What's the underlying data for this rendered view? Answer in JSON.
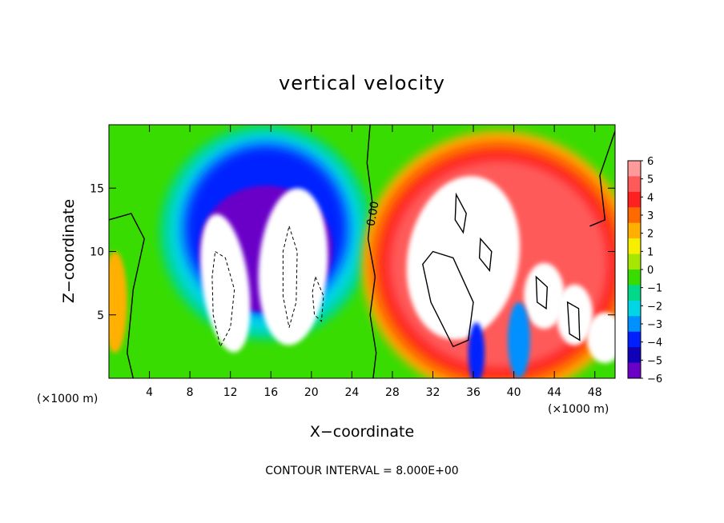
{
  "chart_data": {
    "type": "heatmap",
    "title": "vertical velocity",
    "xlabel": "X−coordinate",
    "ylabel": "Z−coordinate",
    "x_unit_left": "(×1000 m)",
    "x_unit_right": "(×1000 m)",
    "xlim": [
      0,
      50
    ],
    "ylim": [
      0,
      20
    ],
    "x_ticks": [
      4,
      8,
      12,
      16,
      20,
      24,
      28,
      32,
      36,
      40,
      44,
      48
    ],
    "y_ticks": [
      5,
      10,
      15
    ],
    "colorbar": {
      "levels": [
        6,
        5,
        4,
        3,
        2,
        1,
        0,
        -1,
        -2,
        -3,
        -4,
        -5,
        -6
      ],
      "labels": [
        "6",
        "5",
        "4",
        "3",
        "2",
        "1",
        "0",
        "−1",
        "−2",
        "−3",
        "−4",
        "−5",
        "−6"
      ],
      "colors": [
        "#ff9a9a",
        "#ff5a5a",
        "#ff2020",
        "#ff6a00",
        "#ffb000",
        "#f6f000",
        "#a6e600",
        "#38dc00",
        "#00d88a",
        "#00d6e6",
        "#0090ff",
        "#0020ff",
        "#1000b8",
        "#6a00c8"
      ]
    },
    "contour_label": "0.00",
    "footer": "CONTOUR INTERVAL = 8.000E+00"
  }
}
